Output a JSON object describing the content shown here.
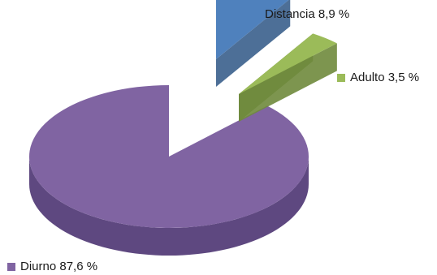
{
  "chart_data": {
    "type": "pie",
    "style": "3d-exploded",
    "slices": [
      {
        "label": "Distancia",
        "value": 8.9,
        "value_text": "8,9 %",
        "color": "#4f81bd",
        "side_color": "#3a5f8c"
      },
      {
        "label": "Adulto",
        "value": 3.5,
        "value_text": "3,5 %",
        "color": "#9bbb59",
        "side_color": "#6f8a3c"
      },
      {
        "label": "Diurno",
        "value": 87.6,
        "value_text": "87,6 %",
        "color": "#8064a2",
        "side_color": "#5e4880"
      }
    ]
  }
}
